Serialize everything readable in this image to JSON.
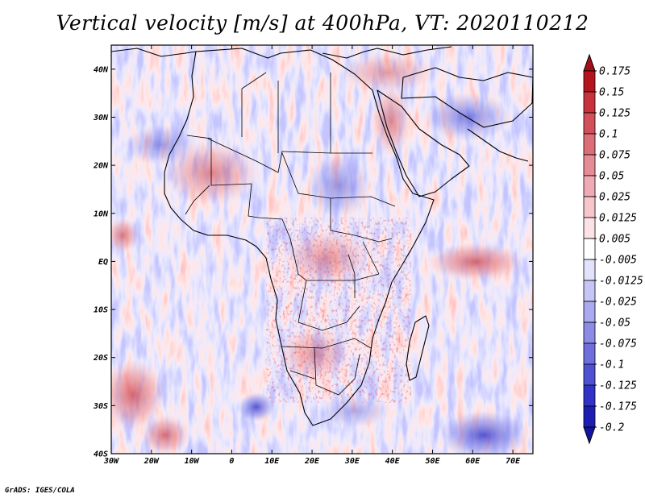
{
  "title": "Vertical velocity [m/s] at 400hPa, VT: 2020110212",
  "credit": "GrADS: IGES/COLA",
  "map": {
    "variable": "Vertical velocity",
    "units": "m/s",
    "level": "400hPa",
    "valid_time": "2020110212",
    "lon_range": [
      -30,
      75
    ],
    "lat_range": [
      -40,
      45
    ],
    "lat_ticks": [
      "40N",
      "30N",
      "20N",
      "10N",
      "EQ",
      "10S",
      "20S",
      "30S",
      "40S"
    ],
    "lon_ticks": [
      "30W",
      "20W",
      "10W",
      "0",
      "10E",
      "20E",
      "30E",
      "40E",
      "50E",
      "60E",
      "70E"
    ]
  },
  "colorbar": {
    "labels": [
      "0.175",
      "0.15",
      "0.125",
      "0.1",
      "0.075",
      "0.05",
      "0.025",
      "0.0125",
      "0.005",
      "-0.005",
      "-0.0125",
      "-0.025",
      "-0.05",
      "-0.075",
      "-0.1",
      "-0.125",
      "-0.175",
      "-0.2"
    ],
    "colors": [
      "#b4141e",
      "#c8323c",
      "#d2505a",
      "#dc6e78",
      "#e68c96",
      "#f0aab4",
      "#f6c6cc",
      "#fae2e6",
      "#ffffff",
      "#e2e2fa",
      "#c6c6f6",
      "#aaaaf0",
      "#8c8ce6",
      "#6e6edc",
      "#5050d2",
      "#3232c8",
      "#1e1eb4"
    ],
    "top_color": "#a0101a",
    "bottom_color": "#1414a0"
  }
}
